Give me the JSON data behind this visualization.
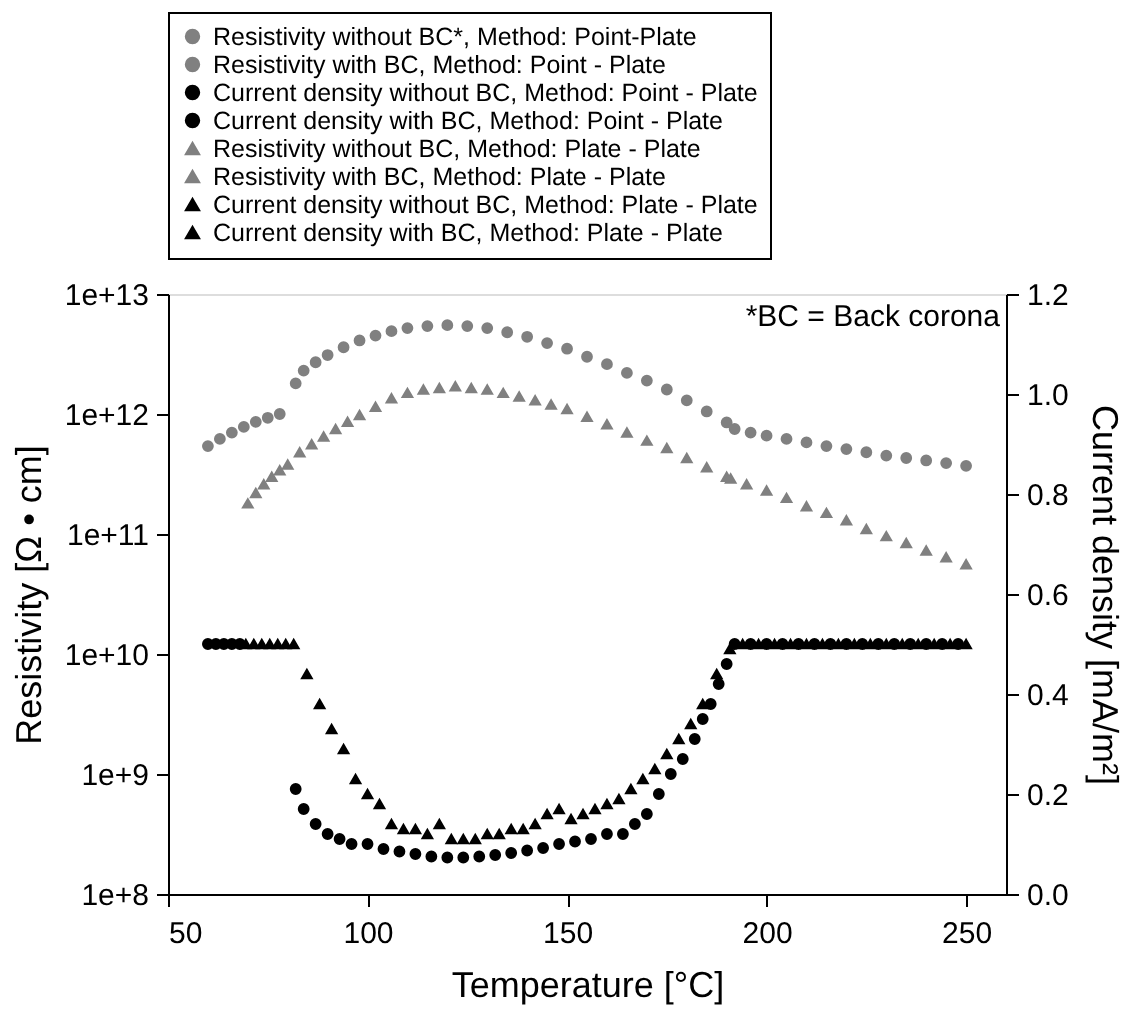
{
  "chart_data": {
    "type": "scatter",
    "xlabel": "Temperature [°C]",
    "ylabel": "Resistivity [Ω • cm]",
    "y2label": "Current density [mA/m²]",
    "xlim": [
      50,
      260
    ],
    "xticks": [
      50,
      100,
      150,
      200,
      250
    ],
    "ylim": [
      100000000.0,
      10000000000000.0
    ],
    "log": "y",
    "yticks": [
      {
        "value": 100000000.0,
        "label": "1e+8"
      },
      {
        "value": 1000000000.0,
        "label": "1e+9"
      },
      {
        "value": 10000000000.0,
        "label": "1e+10"
      },
      {
        "value": 100000000000.0,
        "label": "1e+11"
      },
      {
        "value": 1000000000000.0,
        "label": "1e+12"
      },
      {
        "value": 10000000000000.0,
        "label": "1e+13"
      }
    ],
    "y2lim": [
      0,
      1.2
    ],
    "y2ticks": [
      {
        "value": 0,
        "label": "0.0"
      },
      0.2,
      0.4,
      0.6,
      0.8,
      {
        "value": 1,
        "label": "1.0"
      },
      1.2
    ],
    "grid": false,
    "legend": "top",
    "annotations": [
      "*BC = Back corona"
    ],
    "series": [
      {
        "name": "Resistivity without BC*, Method: Point-Plate",
        "color": "#808080",
        "marker": "circle",
        "x": [
          60,
          63,
          66,
          69,
          72,
          75,
          78,
          192,
          196,
          200,
          205,
          210,
          215,
          220,
          225,
          230,
          235,
          240,
          245,
          250
        ],
        "values": [
          540000000000.0,
          620000000000.0,
          700000000000.0,
          780000000000.0,
          860000000000.0,
          930000000000.0,
          1000000000000.0,
          750000000000.0,
          700000000000.0,
          660000000000.0,
          620000000000.0,
          580000000000.0,
          540000000000.0,
          510000000000.0,
          480000000000.0,
          450000000000.0,
          430000000000.0,
          410000000000.0,
          390000000000.0,
          370000000000.0
        ]
      },
      {
        "name": "Resistivity with BC, Method: Point - Plate",
        "color": "#808080",
        "marker": "circle",
        "x": [
          82,
          84,
          87,
          90,
          94,
          98,
          102,
          106,
          110,
          115,
          120,
          125,
          130,
          135,
          140,
          145,
          150,
          155,
          160,
          165,
          170,
          175,
          180,
          185,
          190
        ],
        "values": [
          1800000000000.0,
          2300000000000.0,
          2700000000000.0,
          3100000000000.0,
          3600000000000.0,
          4100000000000.0,
          4500000000000.0,
          4900000000000.0,
          5200000000000.0,
          5400000000000.0,
          5500000000000.0,
          5400000000000.0,
          5200000000000.0,
          4800000000000.0,
          4400000000000.0,
          3900000000000.0,
          3500000000000.0,
          3000000000000.0,
          2600000000000.0,
          2200000000000.0,
          1900000000000.0,
          1600000000000.0,
          1300000000000.0,
          1050000000000.0,
          850000000000.0
        ]
      },
      {
        "name": "Current density without BC, Method: Point - Plate",
        "color": "#000000",
        "marker": "circle",
        "axis": "y2",
        "x": [
          60,
          62,
          64,
          66,
          68,
          192,
          196,
          200,
          204,
          208,
          212,
          216,
          220,
          224,
          228,
          232,
          236,
          240,
          244,
          248
        ],
        "values": [
          0.5,
          0.5,
          0.5,
          0.5,
          0.5,
          0.5,
          0.5,
          0.5,
          0.5,
          0.5,
          0.5,
          0.5,
          0.5,
          0.5,
          0.5,
          0.5,
          0.5,
          0.5,
          0.5,
          0.5
        ]
      },
      {
        "name": "Current density with BC, Method: Point - Plate",
        "color": "#000000",
        "marker": "circle",
        "axis": "y2",
        "x": [
          82,
          84,
          87,
          90,
          93,
          96,
          100,
          104,
          108,
          112,
          116,
          120,
          124,
          128,
          132,
          136,
          140,
          144,
          148,
          152,
          156,
          160,
          164,
          167,
          170,
          173,
          176,
          179,
          182,
          184,
          186,
          188,
          190
        ],
        "values": [
          0.21,
          0.17,
          0.14,
          0.12,
          0.11,
          0.1,
          0.1,
          0.09,
          0.085,
          0.08,
          0.075,
          0.073,
          0.073,
          0.075,
          0.078,
          0.082,
          0.087,
          0.092,
          0.1,
          0.105,
          0.11,
          0.12,
          0.12,
          0.14,
          0.16,
          0.2,
          0.24,
          0.27,
          0.31,
          0.35,
          0.38,
          0.42,
          0.46
        ]
      },
      {
        "name": "Resistivity without BC, Method: Plate - Plate",
        "color": "#808080",
        "marker": "triangle",
        "x": [
          70,
          72,
          74,
          76,
          78,
          80,
          191,
          195,
          200,
          205,
          210,
          215,
          220,
          225,
          230,
          235,
          240,
          245,
          250
        ],
        "values": [
          180000000000.0,
          220000000000.0,
          260000000000.0,
          300000000000.0,
          340000000000.0,
          380000000000.0,
          290000000000.0,
          260000000000.0,
          230000000000.0,
          200000000000.0,
          170000000000.0,
          150000000000.0,
          130000000000.0,
          110000000000.0,
          96000000000.0,
          84000000000.0,
          73000000000.0,
          64000000000.0,
          56000000000.0
        ]
      },
      {
        "name": "Resistivity with BC, Method: Plate - Plate",
        "color": "#808080",
        "marker": "triangle",
        "x": [
          83,
          86,
          89,
          92,
          95,
          98,
          102,
          106,
          110,
          114,
          118,
          122,
          126,
          130,
          134,
          138,
          142,
          146,
          150,
          155,
          160,
          165,
          170,
          175,
          180,
          185,
          190
        ],
        "values": [
          480000000000.0,
          560000000000.0,
          650000000000.0,
          750000000000.0,
          860000000000.0,
          980000000000.0,
          1150000000000.0,
          1350000000000.0,
          1500000000000.0,
          1600000000000.0,
          1650000000000.0,
          1700000000000.0,
          1650000000000.0,
          1600000000000.0,
          1500000000000.0,
          1400000000000.0,
          1300000000000.0,
          1200000000000.0,
          1100000000000.0,
          950000000000.0,
          820000000000.0,
          700000000000.0,
          600000000000.0,
          520000000000.0,
          430000000000.0,
          360000000000.0,
          300000000000.0
        ]
      },
      {
        "name": "Current density without BC, Method: Plate - Plate",
        "color": "#000000",
        "marker": "triangle",
        "axis": "y2",
        "x": [
          69.5,
          71.5,
          73.5,
          75.5,
          77.5,
          79.5,
          81.5,
          194,
          198,
          202,
          206,
          210,
          214,
          218,
          222,
          226,
          230,
          234,
          238,
          242,
          246,
          250
        ],
        "values": [
          0.5,
          0.5,
          0.5,
          0.5,
          0.5,
          0.5,
          0.5,
          0.5,
          0.5,
          0.5,
          0.5,
          0.5,
          0.5,
          0.5,
          0.5,
          0.5,
          0.5,
          0.5,
          0.5,
          0.5,
          0.5,
          0.5
        ]
      },
      {
        "name": "Current density with BC, Method: Plate - Plate",
        "color": "#000000",
        "marker": "triangle",
        "axis": "y2",
        "x": [
          84.8,
          88,
          91,
          94,
          97,
          100,
          103,
          106,
          109,
          112,
          115,
          118,
          121,
          124,
          127,
          130,
          133,
          136,
          139,
          142,
          145,
          148,
          151,
          154,
          157,
          160,
          163,
          166,
          169,
          172,
          175,
          178,
          181,
          184,
          187.5,
          190.8
        ],
        "values": [
          0.44,
          0.38,
          0.33,
          0.29,
          0.23,
          0.2,
          0.18,
          0.14,
          0.13,
          0.13,
          0.12,
          0.14,
          0.11,
          0.11,
          0.11,
          0.12,
          0.12,
          0.13,
          0.13,
          0.14,
          0.16,
          0.17,
          0.15,
          0.16,
          0.17,
          0.18,
          0.19,
          0.21,
          0.23,
          0.25,
          0.28,
          0.31,
          0.34,
          0.38,
          0.44,
          0.49
        ]
      }
    ]
  }
}
